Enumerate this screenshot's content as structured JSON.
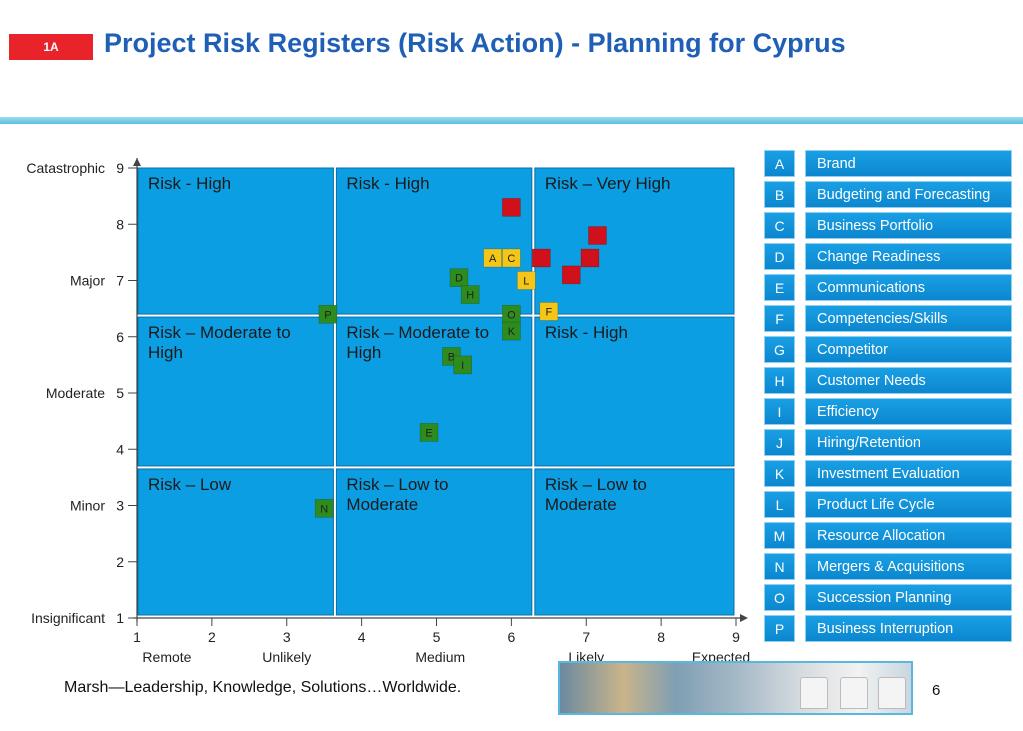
{
  "header": {
    "tag": "1A",
    "title": "Project Risk Registers (Risk Action) - Planning for Cyprus"
  },
  "chart_data": {
    "type": "scatter",
    "title": "Project Risk Registers (Risk Action) - Planning for Cyprus",
    "xlim": [
      1,
      9
    ],
    "ylim": [
      1,
      9
    ],
    "x_ticks": [
      1,
      2,
      3,
      4,
      5,
      6,
      7,
      8,
      9
    ],
    "y_ticks": [
      1,
      2,
      3,
      4,
      5,
      6,
      7,
      8,
      9
    ],
    "x_categories": [
      {
        "label": "Remote",
        "at": 1.4
      },
      {
        "label": "Unlikely",
        "at": 3.0
      },
      {
        "label": "Medium",
        "at": 5.05
      },
      {
        "label": "Likely",
        "at": 7.0
      },
      {
        "label": "Expected",
        "at": 8.8
      }
    ],
    "y_categories": [
      {
        "label": "Catastrophic",
        "at": 9
      },
      {
        "label": "Major",
        "at": 7
      },
      {
        "label": "Moderate",
        "at": 5
      },
      {
        "label": "Minor",
        "at": 3
      },
      {
        "label": "Insignificant",
        "at": 1
      }
    ],
    "zones": [
      {
        "label": "Risk - High",
        "x": [
          1,
          3.65
        ],
        "y": [
          6.35,
          9
        ]
      },
      {
        "label": "Risk - High",
        "x": [
          3.65,
          6.3
        ],
        "y": [
          6.35,
          9
        ]
      },
      {
        "label": "Risk – Very High",
        "x": [
          6.3,
          9
        ],
        "y": [
          6.35,
          9
        ]
      },
      {
        "label": "Risk – Moderate to High",
        "x": [
          1,
          3.65
        ],
        "y": [
          3.65,
          6.35
        ]
      },
      {
        "label": "Risk – Moderate to High",
        "x": [
          3.65,
          6.3
        ],
        "y": [
          3.65,
          6.35
        ]
      },
      {
        "label": "Risk - High",
        "x": [
          6.3,
          9
        ],
        "y": [
          3.65,
          6.35
        ]
      },
      {
        "label": "Risk – Low",
        "x": [
          1,
          3.65
        ],
        "y": [
          1,
          3.65
        ]
      },
      {
        "label": "Risk – Low to Moderate",
        "x": [
          3.65,
          6.3
        ],
        "y": [
          1,
          3.65
        ]
      },
      {
        "label": "Risk – Low to Moderate",
        "x": [
          6.3,
          9
        ],
        "y": [
          1,
          3.65
        ]
      }
    ],
    "points": [
      {
        "label": "A",
        "x": 5.75,
        "y": 7.4,
        "color": "#f5c518"
      },
      {
        "label": "C",
        "x": 6.0,
        "y": 7.4,
        "color": "#f5c518"
      },
      {
        "label": "L",
        "x": 6.2,
        "y": 7.0,
        "color": "#f5c518"
      },
      {
        "label": "F",
        "x": 6.5,
        "y": 6.45,
        "color": "#f5c518"
      },
      {
        "label": "D",
        "x": 5.3,
        "y": 7.05,
        "color": "#2e8b1e"
      },
      {
        "label": "H",
        "x": 5.45,
        "y": 6.75,
        "color": "#2e8b1e"
      },
      {
        "label": "P",
        "x": 3.55,
        "y": 6.4,
        "color": "#2e8b1e"
      },
      {
        "label": "O",
        "x": 6.0,
        "y": 6.4,
        "color": "#2e8b1e"
      },
      {
        "label": "K",
        "x": 6.0,
        "y": 6.1,
        "color": "#2e8b1e"
      },
      {
        "label": "B",
        "x": 5.2,
        "y": 5.65,
        "color": "#2e8b1e"
      },
      {
        "label": "I",
        "x": 5.35,
        "y": 5.5,
        "color": "#2e8b1e"
      },
      {
        "label": "E",
        "x": 4.9,
        "y": 4.3,
        "color": "#2e8b1e"
      },
      {
        "label": "N",
        "x": 3.5,
        "y": 2.95,
        "color": "#2e8b1e"
      },
      {
        "label": "",
        "x": 6.0,
        "y": 8.3,
        "color": "#d0101a"
      },
      {
        "label": "",
        "x": 7.15,
        "y": 7.8,
        "color": "#d0101a"
      },
      {
        "label": "",
        "x": 6.4,
        "y": 7.4,
        "color": "#d0101a"
      },
      {
        "label": "",
        "x": 7.05,
        "y": 7.4,
        "color": "#d0101a"
      },
      {
        "label": "",
        "x": 6.8,
        "y": 7.1,
        "color": "#d0101a"
      }
    ]
  },
  "legend": [
    {
      "code": "A",
      "label": "Brand"
    },
    {
      "code": "B",
      "label": "Budgeting and Forecasting"
    },
    {
      "code": "C",
      "label": "Business Portfolio"
    },
    {
      "code": "D",
      "label": "Change Readiness"
    },
    {
      "code": "E",
      "label": "Communications"
    },
    {
      "code": "F",
      "label": "Competencies/Skills"
    },
    {
      "code": "G",
      "label": "Competitor"
    },
    {
      "code": "H",
      "label": "Customer Needs"
    },
    {
      "code": "I",
      "label": "Efficiency"
    },
    {
      "code": "J",
      "label": "Hiring/Retention"
    },
    {
      "code": "K",
      "label": "Investment Evaluation"
    },
    {
      "code": "L",
      "label": "Product Life Cycle"
    },
    {
      "code": "M",
      "label": "Resource Allocation"
    },
    {
      "code": "N",
      "label": "Mergers & Acquisitions"
    },
    {
      "code": "O",
      "label": "Succession Planning"
    },
    {
      "code": "P",
      "label": "Business Interruption"
    }
  ],
  "footer": {
    "tagline": "Marsh—Leadership, Knowledge, Solutions…Worldwide.",
    "page": "6"
  },
  "colors": {
    "zone": "#0b9ee2",
    "title": "#1f5fb5",
    "tag": "#e8232a"
  }
}
